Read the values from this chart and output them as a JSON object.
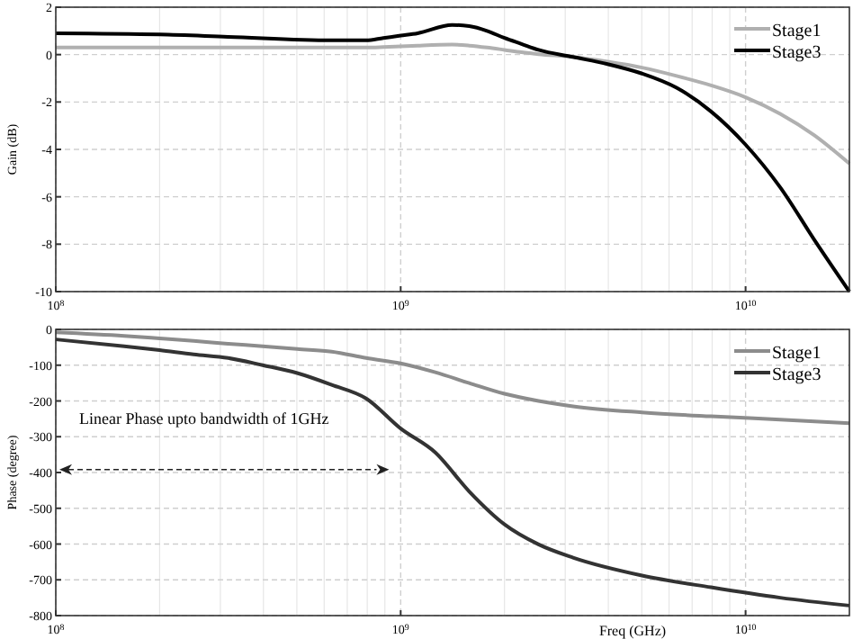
{
  "chart_data": [
    {
      "type": "line",
      "ylabel": "Gain (dB)",
      "log": "x",
      "grid": true,
      "legend": "top right",
      "xlim": [
        100000000,
        20000000000
      ],
      "xticks": [
        {
          "value": 100000000,
          "label": "10$^{8}$"
        },
        {
          "value": 1000000000,
          "label": "10$^{9}$"
        },
        {
          "value": 10000000000,
          "label": "10$^{10}$"
        }
      ],
      "ylim": [
        -10,
        2
      ],
      "yticks": [
        -10,
        -8,
        -6,
        -4,
        -2,
        0,
        2
      ],
      "x": [
        100000000,
        200000000,
        316000000,
        631000000,
        794000000,
        891000000,
        1000000000,
        1120000000,
        1410000000,
        1580000000,
        1780000000,
        2000000000,
        2240000000,
        2510000000,
        3160000000,
        3980000000,
        5010000000,
        6310000000,
        7940000000,
        10000000000,
        12600000000,
        15800000000,
        20000000000
      ],
      "series": [
        {
          "name": "Stage1",
          "color": "#b0b0b0",
          "values": [
            0.3,
            0.3,
            0.3,
            0.3,
            0.3,
            0.32,
            0.35,
            0.38,
            0.42,
            0.38,
            0.3,
            0.2,
            0.1,
            0.02,
            -0.1,
            -0.3,
            -0.55,
            -0.9,
            -1.3,
            -1.8,
            -2.5,
            -3.4,
            -4.6
          ]
        },
        {
          "name": "Stage3",
          "color": "#000000",
          "values": [
            0.9,
            0.85,
            0.75,
            0.6,
            0.6,
            0.7,
            0.8,
            0.9,
            1.25,
            1.2,
            1.0,
            0.7,
            0.45,
            0.2,
            -0.1,
            -0.4,
            -0.8,
            -1.4,
            -2.4,
            -3.8,
            -5.6,
            -7.8,
            -10
          ]
        }
      ]
    },
    {
      "type": "line",
      "xlabel": "Freq (GHz)",
      "ylabel": "Phase (degree)",
      "log": "x",
      "grid": true,
      "legend": "top right",
      "xlim": [
        100000000,
        20000000000
      ],
      "xticks": [
        {
          "value": 100000000,
          "label": "10$^{8}$"
        },
        {
          "value": 1000000000,
          "label": "10$^{9}$"
        },
        {
          "value": 10000000000,
          "label": "10$^{10}$"
        }
      ],
      "ylim": [
        -800,
        0
      ],
      "yticks": [
        -800,
        -700,
        -600,
        -500,
        -400,
        -300,
        -200,
        -100,
        0
      ],
      "x": [
        100000000,
        158000000,
        200000000,
        251000000,
        316000000,
        398000000,
        501000000,
        631000000,
        794000000,
        1000000000,
        1260000000,
        1580000000,
        2000000000,
        2510000000,
        3160000000,
        5010000000,
        7940000000,
        12600000000,
        20000000000
      ],
      "series": [
        {
          "name": "Stage1",
          "color": "#8c8c8c",
          "values": [
            -8,
            -18,
            -25,
            -32,
            -40,
            -47,
            -55,
            -62,
            -80,
            -95,
            -120,
            -150,
            -180,
            -200,
            -215,
            -232,
            -243,
            -252,
            -262
          ]
        },
        {
          "name": "Stage3",
          "color": "#333333",
          "values": [
            -28,
            -47,
            -58,
            -70,
            -80,
            -100,
            -122,
            -155,
            -193,
            -277,
            -344,
            -453,
            -545,
            -601,
            -638,
            -688,
            -721,
            -750,
            -772
          ]
        }
      ],
      "annotations": [
        "Linear Phase upto bandwidth of 1GHz"
      ]
    }
  ]
}
